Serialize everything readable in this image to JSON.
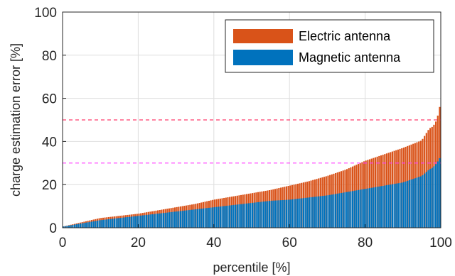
{
  "chart_data": {
    "type": "bar",
    "stacked": false,
    "overlaid": true,
    "xlabel": "percentile [%]",
    "ylabel": "charge estimation error [%]",
    "xlim": [
      0,
      100
    ],
    "ylim": [
      0,
      100
    ],
    "xticks": [
      "0",
      "20",
      "40",
      "60",
      "80",
      "100"
    ],
    "yticks": [
      "0",
      "20",
      "40",
      "60",
      "80",
      "100"
    ],
    "grid": true,
    "legend_position": "top-right",
    "x": [
      0,
      5,
      10,
      15,
      20,
      25,
      30,
      35,
      40,
      45,
      50,
      55,
      60,
      65,
      70,
      75,
      80,
      85,
      90,
      95,
      97,
      98,
      99,
      100
    ],
    "series": [
      {
        "name": "Electric antenna",
        "color": "#d95319",
        "values": [
          0.5,
          2.5,
          4.5,
          5.5,
          6.5,
          8,
          9.5,
          11,
          13,
          14.5,
          16,
          17.5,
          19.5,
          21.5,
          24,
          27,
          31,
          34,
          37,
          40.5,
          46,
          47,
          50,
          58
        ]
      },
      {
        "name": "Magnetic antenna",
        "color": "#0072bd",
        "values": [
          0.5,
          2,
          3.5,
          4.5,
          5.5,
          6.5,
          7.5,
          8.5,
          9.5,
          10.5,
          11.5,
          12.5,
          13,
          14,
          15,
          16.5,
          18,
          19.5,
          21,
          24,
          27,
          28,
          30,
          33
        ]
      }
    ],
    "reference_lines": [
      {
        "y": 50,
        "color": "#ff3b6b",
        "style": "dashed"
      },
      {
        "y": 30,
        "color": "#ff3bff",
        "style": "dashed"
      }
    ],
    "colors": {
      "axis": "#262626",
      "grid": "#dedede",
      "background": "#ffffff"
    }
  }
}
